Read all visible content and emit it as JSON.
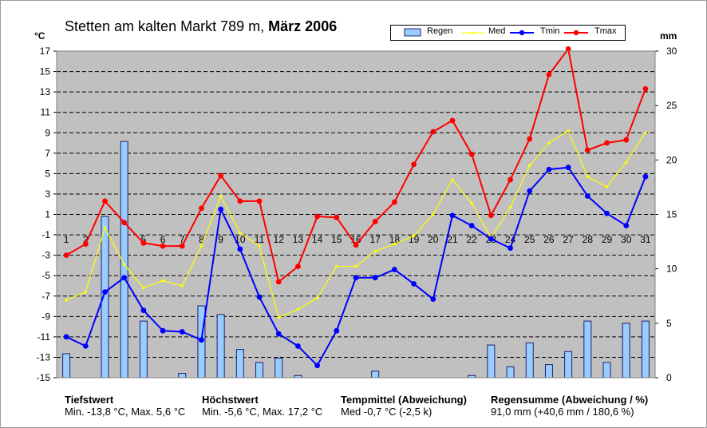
{
  "title": {
    "location": "Stetten am kalten Markt",
    "altitude": "789 m,",
    "period": "März 2006"
  },
  "units": {
    "left": "°C",
    "right": "mm"
  },
  "legend": {
    "rain": "Regen",
    "med": "Med",
    "tmin": "Tmin",
    "tmax": "Tmax"
  },
  "colors": {
    "rain_fill": "#99ccff",
    "rain_stroke": "#1f1f6f",
    "med": "#ffff00",
    "tmin": "#0000ff",
    "tmax": "#ff0000",
    "plot_bg": "#c0c0c0"
  },
  "chart_data": {
    "type": "line",
    "x": [
      1,
      2,
      3,
      4,
      5,
      6,
      7,
      8,
      9,
      10,
      11,
      12,
      13,
      14,
      15,
      16,
      17,
      18,
      19,
      20,
      21,
      22,
      23,
      24,
      25,
      26,
      27,
      28,
      29,
      30,
      31
    ],
    "y_left": {
      "ticks": [
        17,
        15,
        13,
        11,
        9,
        7,
        5,
        3,
        1,
        -1,
        -3,
        -5,
        -7,
        -9,
        -11,
        -13,
        -15
      ],
      "range": [
        -15,
        17
      ]
    },
    "y_right": {
      "ticks": [
        30,
        25,
        20,
        15,
        10,
        5,
        0
      ],
      "range": [
        0,
        30
      ]
    },
    "grid": true,
    "series": [
      {
        "name": "Regen",
        "axis": "right",
        "kind": "bar",
        "values": [
          2.2,
          0,
          14.8,
          21.7,
          5.2,
          0,
          0.4,
          6.6,
          5.8,
          2.6,
          1.4,
          1.8,
          0.2,
          0,
          0,
          0,
          0.6,
          0,
          0,
          0,
          0,
          0.2,
          3.0,
          1.0,
          3.2,
          1.2,
          2.4,
          5.2,
          1.4,
          5.0,
          5.2
        ]
      },
      {
        "name": "Med",
        "axis": "left",
        "kind": "line",
        "values": [
          -7.4,
          -6.6,
          -0.3,
          -3.9,
          -6.2,
          -5.5,
          -6.0,
          -2.1,
          2.8,
          -0.8,
          -2.1,
          -9.1,
          -8.3,
          -7.2,
          -4.1,
          -4.1,
          -2.6,
          -1.9,
          -1.1,
          1.0,
          4.4,
          2.1,
          -1.3,
          1.7,
          5.8,
          8.0,
          9.2,
          4.7,
          3.7,
          6.1,
          9.0
        ]
      },
      {
        "name": "Tmin",
        "axis": "left",
        "kind": "line",
        "values": [
          -11.0,
          -11.9,
          -6.6,
          -5.2,
          -8.4,
          -10.4,
          -10.5,
          -11.3,
          1.5,
          -2.4,
          -7.1,
          -10.7,
          -11.9,
          -13.8,
          -10.4,
          -5.2,
          -5.2,
          -4.4,
          -5.8,
          -7.3,
          0.9,
          -0.1,
          -1.4,
          -2.3,
          3.3,
          5.4,
          5.6,
          2.8,
          1.1,
          -0.1,
          4.7
        ]
      },
      {
        "name": "Tmax",
        "axis": "left",
        "kind": "line",
        "values": [
          -3.0,
          -1.9,
          2.3,
          0.2,
          -1.8,
          -2.1,
          -2.1,
          1.6,
          4.8,
          2.3,
          2.3,
          -5.6,
          -4.1,
          0.8,
          0.7,
          -2.0,
          0.3,
          2.2,
          5.9,
          9.1,
          10.2,
          6.9,
          0.9,
          4.4,
          8.4,
          14.7,
          17.2,
          7.3,
          8.0,
          8.3,
          13.3
        ]
      }
    ]
  },
  "footer": {
    "tiefst_head": "Tiefstwert",
    "tiefst_val": "Min. -13,8 °C, Max. 5,6 °C",
    "hoechst_head": "Höchstwert",
    "hoechst_val": "Min. -5,6 °C, Max. 17,2 °C",
    "temp_head": "Tempmittel (Abweichung)",
    "temp_val": "Med -0,7 °C (-2,5 k)",
    "regen_head": "Regensumme (Abweichung / %)",
    "regen_val": "91,0 mm (+40,6 mm / 180,6 %)"
  }
}
